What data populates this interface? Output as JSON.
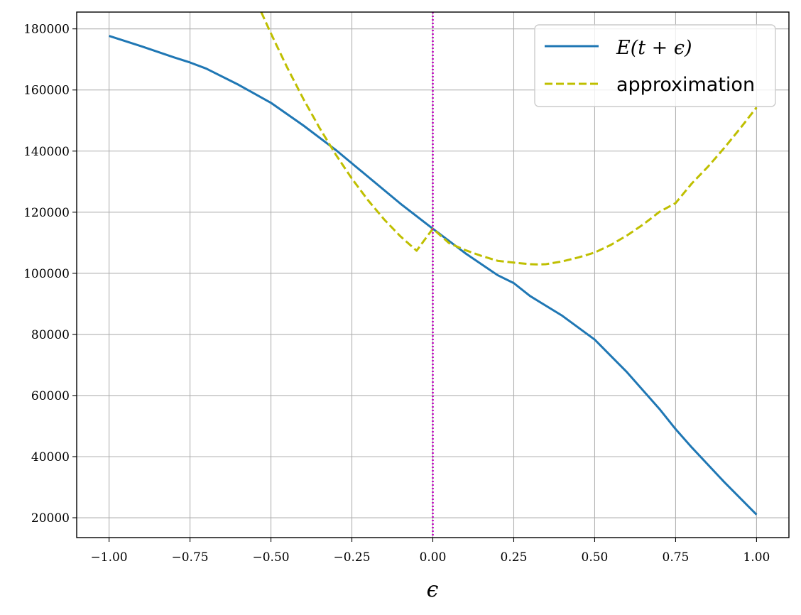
{
  "chart_data": {
    "type": "line",
    "title": "",
    "xlabel": "ϵ",
    "ylabel": "",
    "xlim": [
      -1.1,
      1.1
    ],
    "ylim": [
      13500,
      185500
    ],
    "grid": true,
    "legend_position": "top-right",
    "x_ticks": [
      -1.0,
      -0.75,
      -0.5,
      -0.25,
      0.0,
      0.25,
      0.5,
      0.75,
      1.0
    ],
    "x_tick_labels": [
      "−1.00",
      "−0.75",
      "−0.50",
      "−0.25",
      "0.00",
      "0.25",
      "0.50",
      "0.75",
      "1.00"
    ],
    "y_ticks": [
      20000,
      40000,
      60000,
      80000,
      100000,
      120000,
      140000,
      160000,
      180000
    ],
    "y_tick_labels": [
      "20000",
      "40000",
      "60000",
      "80000",
      "100000",
      "120000",
      "140000",
      "160000",
      "180000"
    ],
    "vertical_line": {
      "x": 0.0,
      "color": "#bf00bf",
      "style": "dotted"
    },
    "series": [
      {
        "name": "E(t + ϵ)",
        "color": "#1f77b4",
        "style": "solid",
        "x": [
          -1.0,
          -0.9,
          -0.8,
          -0.75,
          -0.7,
          -0.6,
          -0.5,
          -0.4,
          -0.3,
          -0.25,
          -0.2,
          -0.1,
          0.0,
          0.1,
          0.2,
          0.25,
          0.3,
          0.4,
          0.5,
          0.6,
          0.7,
          0.75,
          0.8,
          0.9,
          1.0
        ],
        "y": [
          177700,
          174300,
          170700,
          169000,
          167000,
          161700,
          155800,
          148400,
          140400,
          136000,
          131600,
          122800,
          114600,
          106600,
          99400,
          96800,
          92600,
          86100,
          78300,
          67600,
          55600,
          49000,
          43000,
          31700,
          21000
        ]
      },
      {
        "name": "approximation",
        "color": "#bfbf00",
        "style": "dashed",
        "x": [
          -0.53,
          -0.5,
          -0.45,
          -0.4,
          -0.35,
          -0.3,
          -0.25,
          -0.2,
          -0.15,
          -0.1,
          -0.05,
          0.0,
          0.05,
          0.1,
          0.15,
          0.2,
          0.25,
          0.3,
          0.325,
          0.35,
          0.4,
          0.45,
          0.5,
          0.55,
          0.6,
          0.65,
          0.7,
          0.75,
          0.8,
          0.85,
          0.9,
          0.95,
          1.0
        ],
        "y": [
          185500,
          178500,
          167400,
          157100,
          147600,
          138900,
          131000,
          123900,
          117600,
          112100,
          107400,
          114600,
          109900,
          107600,
          105700,
          104100,
          103500,
          103000,
          102900,
          103000,
          103900,
          105200,
          106800,
          109300,
          112400,
          116000,
          120100,
          123000,
          129400,
          134900,
          141000,
          147500,
          154300
        ]
      }
    ]
  }
}
